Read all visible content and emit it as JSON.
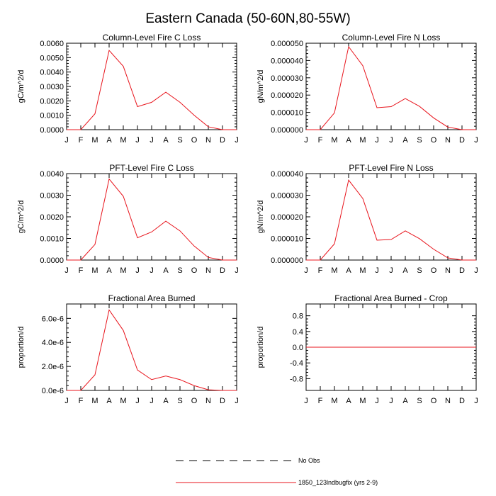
{
  "figure": {
    "title": "Eastern Canada (50-60N,80-55W)"
  },
  "colors": {
    "series_line": "#e8141c",
    "axis": "#000000",
    "background": "#ffffff"
  },
  "chart_data": [
    {
      "type": "line",
      "title": "Column-Level Fire C Loss",
      "ylabel": "gC/m^2/d",
      "categories": [
        "J",
        "F",
        "M",
        "A",
        "M",
        "J",
        "J",
        "A",
        "S",
        "O",
        "N",
        "D",
        "J"
      ],
      "ylim": [
        0,
        0.006
      ],
      "yticks": [
        "0.0000",
        "0.0010",
        "0.0020",
        "0.0030",
        "0.0040",
        "0.0050",
        "0.0060"
      ],
      "series": [
        {
          "name": "1850_123lndbugfix (yrs 2-9)",
          "values": [
            0,
            0,
            0.0011,
            0.0055,
            0.0044,
            0.0016,
            0.0019,
            0.0026,
            0.0019,
            0.001,
            0.0002,
            0,
            0
          ]
        }
      ]
    },
    {
      "type": "line",
      "title": "Column-Level Fire N Loss",
      "ylabel": "gN/m^2/d",
      "categories": [
        "J",
        "F",
        "M",
        "A",
        "M",
        "J",
        "J",
        "A",
        "S",
        "O",
        "N",
        "D",
        "J"
      ],
      "ylim": [
        0,
        5e-05
      ],
      "yticks": [
        "0.000000",
        "0.000010",
        "0.000020",
        "0.000030",
        "0.000040",
        "0.000050"
      ],
      "series": [
        {
          "name": "1850_123lndbugfix (yrs 2-9)",
          "values": [
            0,
            0,
            9.7e-06,
            4.8e-05,
            3.7e-05,
            1.27e-05,
            1.33e-05,
            1.8e-05,
            1.35e-05,
            6.8e-06,
            1.5e-06,
            0,
            0
          ]
        }
      ]
    },
    {
      "type": "line",
      "title": "PFT-Level Fire C Loss",
      "ylabel": "gC/m^2/d",
      "categories": [
        "J",
        "F",
        "M",
        "A",
        "M",
        "J",
        "J",
        "A",
        "S",
        "O",
        "N",
        "D",
        "J"
      ],
      "ylim": [
        0,
        0.004
      ],
      "yticks": [
        "0.0000",
        "0.0010",
        "0.0020",
        "0.0030",
        "0.0040"
      ],
      "series": [
        {
          "name": "1850_123lndbugfix (yrs 2-9)",
          "values": [
            0,
            0,
            0.00072,
            0.00375,
            0.00295,
            0.00103,
            0.0013,
            0.0018,
            0.00135,
            0.00065,
            0.00012,
            0,
            0
          ]
        }
      ]
    },
    {
      "type": "line",
      "title": "PFT-Level Fire N Loss",
      "ylabel": "gN/m^2/d",
      "categories": [
        "J",
        "F",
        "M",
        "A",
        "M",
        "J",
        "J",
        "A",
        "S",
        "O",
        "N",
        "D",
        "J"
      ],
      "ylim": [
        0,
        4e-05
      ],
      "yticks": [
        "0.000000",
        "0.000010",
        "0.000020",
        "0.000030",
        "0.000040"
      ],
      "series": [
        {
          "name": "1850_123lndbugfix (yrs 2-9)",
          "values": [
            0,
            0,
            7.5e-06,
            3.7e-05,
            2.85e-05,
            9.2e-06,
            9.5e-06,
            1.35e-05,
            9.9e-06,
            5e-06,
            1e-06,
            0,
            0
          ]
        }
      ]
    },
    {
      "type": "line",
      "title": "Fractional Area Burned",
      "ylabel": "proportion/d",
      "categories": [
        "J",
        "F",
        "M",
        "A",
        "M",
        "J",
        "J",
        "A",
        "S",
        "O",
        "N",
        "D",
        "J"
      ],
      "ylim": [
        0,
        7.2e-06
      ],
      "yticks": [
        "0.0e-6",
        "2.0e-6",
        "4.0e-6",
        "6.0e-6"
      ],
      "yticks_values": [
        0,
        2e-06,
        4e-06,
        6e-06
      ],
      "series": [
        {
          "name": "1850_123lndbugfix (yrs 2-9)",
          "values": [
            0,
            0,
            1.3e-06,
            6.7e-06,
            5e-06,
            1.7e-06,
            9e-07,
            1.2e-06,
            9e-07,
            4e-07,
            5e-08,
            0,
            0
          ]
        }
      ]
    },
    {
      "type": "line",
      "title": "Fractional Area Burned - Crop",
      "ylabel": "proportion/d",
      "categories": [
        "J",
        "F",
        "M",
        "A",
        "M",
        "J",
        "J",
        "A",
        "S",
        "O",
        "N",
        "D",
        "J"
      ],
      "ylim": [
        -1.1,
        1.1
      ],
      "yticks": [
        "-0.8",
        "-0.4",
        "0.0",
        "0.4",
        "0.8"
      ],
      "yticks_values": [
        -0.8,
        -0.4,
        0,
        0.4,
        0.8
      ],
      "series": [
        {
          "name": "1850_123lndbugfix (yrs 2-9)",
          "values": [
            0,
            0,
            0,
            0,
            0,
            0,
            0,
            0,
            0,
            0,
            0,
            0,
            0
          ]
        }
      ]
    }
  ],
  "legend": {
    "placement": "bottom-center",
    "entries": [
      {
        "label": "No Obs",
        "style": "dashed"
      },
      {
        "label": "1850_123lndbugfix (yrs 2-9)",
        "style": "solid"
      }
    ]
  }
}
